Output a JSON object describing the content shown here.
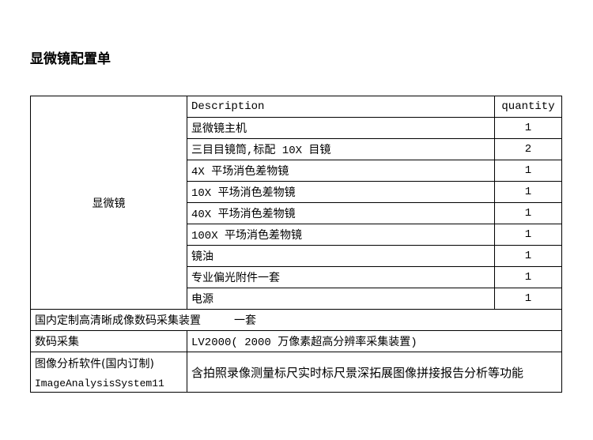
{
  "title": "显微镜配置单",
  "microscope_group_label": "显微镜",
  "headers": {
    "description": "Description",
    "quantity": "quantity"
  },
  "items": [
    {
      "description": "显微镜主机",
      "quantity": "1"
    },
    {
      "description": "三目目镜筒,标配 10X 目镜",
      "quantity": "2"
    },
    {
      "description": "4X 平场消色差物镜",
      "quantity": "1"
    },
    {
      "description": "10X 平场消色差物镜",
      "quantity": "1"
    },
    {
      "description": "40X 平场消色差物镜",
      "quantity": "1"
    },
    {
      "description": "100X 平场消色差物镜",
      "quantity": "1"
    },
    {
      "description": "镜油",
      "quantity": "1"
    },
    {
      "description": "专业偏光附件一套",
      "quantity": "1"
    },
    {
      "description": "电源",
      "quantity": "1"
    }
  ],
  "camera_row": "国内定制高清晰成像数码采集装置　　　一套",
  "digital": {
    "label": "数码采集",
    "value": "LV2000( 2000 万像素超高分辨率采集装置)"
  },
  "software": {
    "label": "图像分析软件(国内订制)",
    "name": "ImageAnalysisSystem11",
    "value": "含拍照录像测量标尺实时标尺景深拓展图像拼接报告分析等功能"
  }
}
